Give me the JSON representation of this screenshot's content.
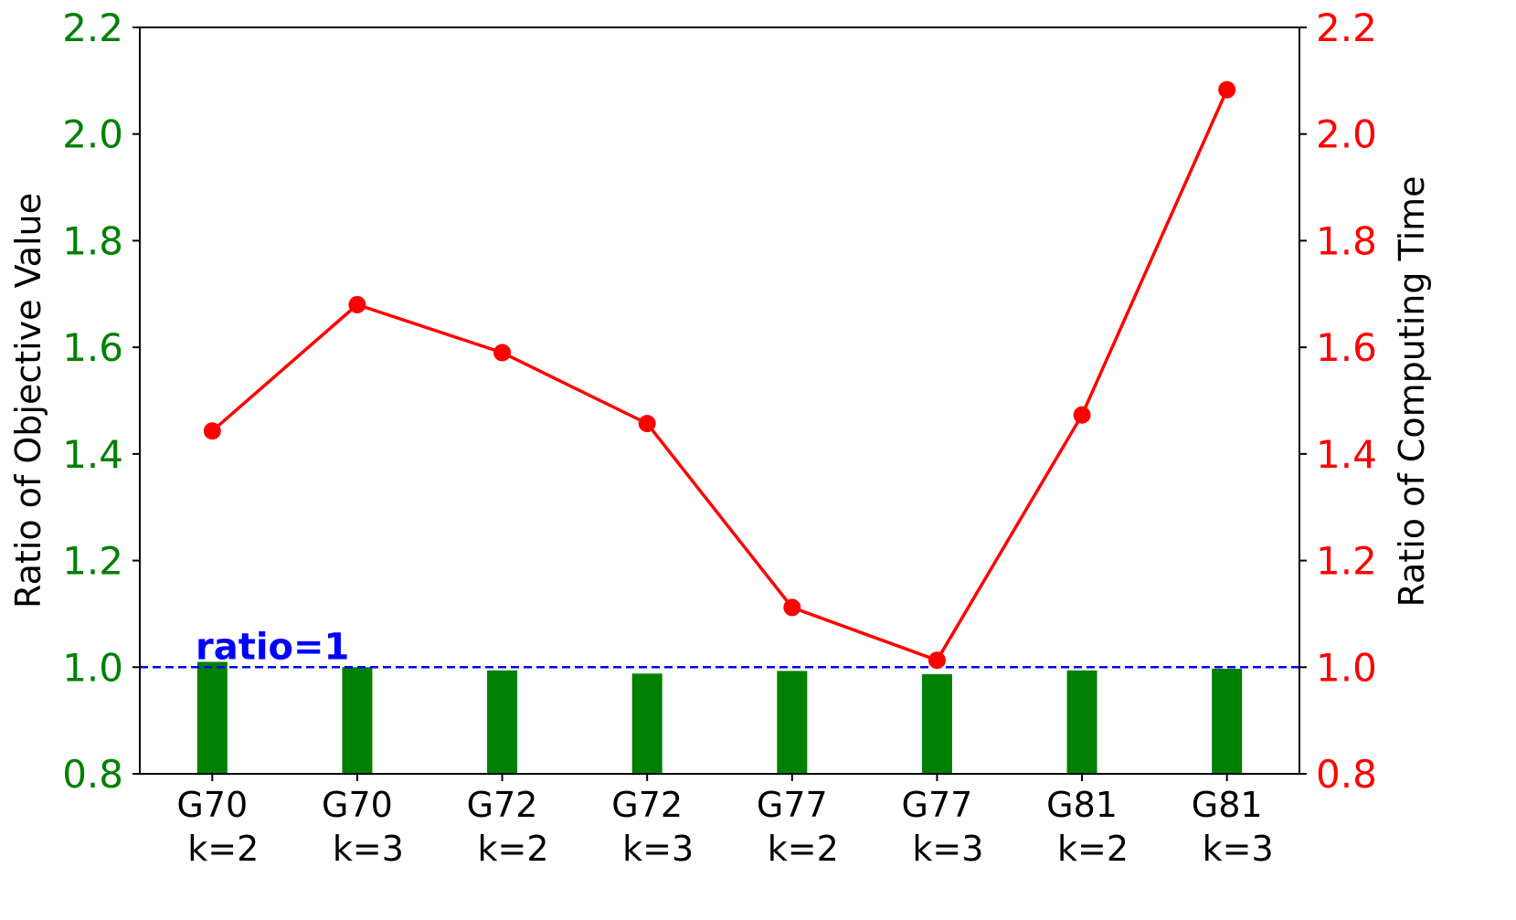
{
  "chart_data": {
    "type": "bar+line",
    "categories": [
      [
        "G70",
        "k=2"
      ],
      [
        "G70",
        "k=3"
      ],
      [
        "G72",
        "k=2"
      ],
      [
        "G72",
        "k=3"
      ],
      [
        "G77",
        "k=2"
      ],
      [
        "G77",
        "k=3"
      ],
      [
        "G81",
        "k=2"
      ],
      [
        "G81",
        "k=3"
      ]
    ],
    "bar_series": {
      "axis": "left",
      "color": "#008000",
      "values": [
        1.01,
        1.0,
        0.994,
        0.988,
        0.993,
        0.987,
        0.994,
        0.997
      ]
    },
    "line_series": {
      "axis": "right",
      "color": "#ff0000",
      "values": [
        1.443,
        1.68,
        1.59,
        1.457,
        1.112,
        1.013,
        1.473,
        2.083
      ]
    },
    "left_axis": {
      "label": "Ratio of Objective Value",
      "ylim": [
        0.8,
        2.2
      ],
      "ticks": [
        "0.8",
        "1.0",
        "1.2",
        "1.4",
        "1.6",
        "1.8",
        "2.0",
        "2.2"
      ],
      "color": "#008000"
    },
    "right_axis": {
      "label": "Ratio of Computing Time",
      "ylim": [
        0.8,
        2.2
      ],
      "ticks": [
        "0.8",
        "1.0",
        "1.2",
        "1.4",
        "1.6",
        "1.8",
        "2.0",
        "2.2"
      ],
      "color": "#ff0000"
    },
    "reference_line": {
      "y": 1.0,
      "label": "ratio=1",
      "color": "#0000ff",
      "style": "dashed"
    },
    "grid": false,
    "legend": "none"
  }
}
